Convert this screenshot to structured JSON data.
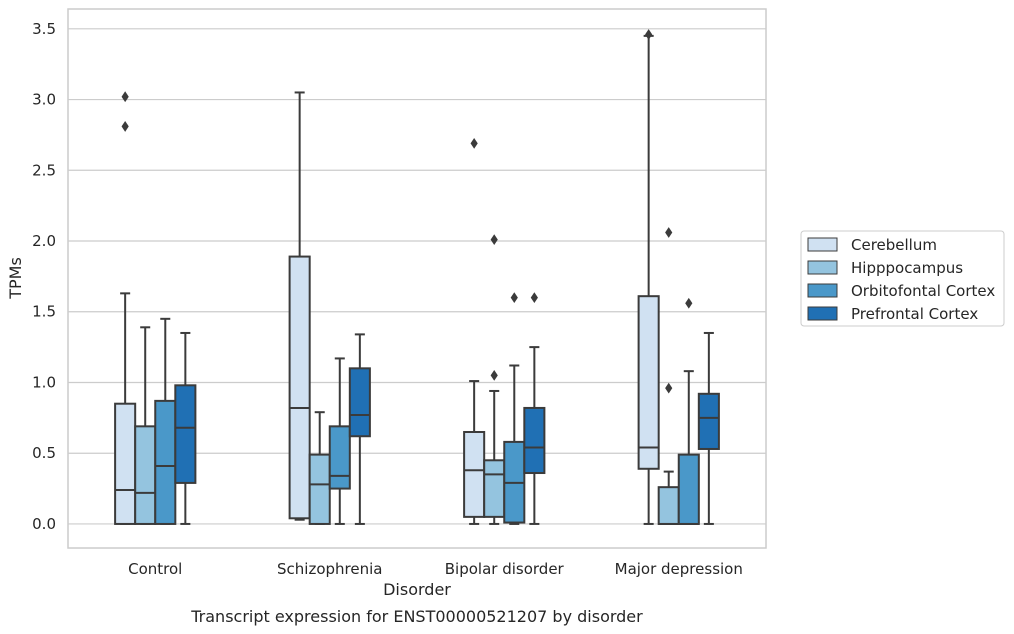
{
  "chart_data": {
    "type": "boxplot",
    "caption": "Transcript expression for ENST00000521207 by disorder",
    "xlabel": "Disorder",
    "ylabel": "TPMs",
    "ylim": [
      -0.17,
      3.64
    ],
    "yticks": [
      "0.0",
      "0.5",
      "1.0",
      "1.5",
      "2.0",
      "2.5",
      "3.0",
      "3.5"
    ],
    "grid": "horizontal",
    "legend_position": "right",
    "categories": [
      "Control",
      "Schizophrenia",
      "Bipolar disorder",
      "Major depression"
    ],
    "series": [
      {
        "name": "Cerebellum",
        "color": "#d0e1f2",
        "boxes": [
          {
            "whislo": 0.0,
            "q1": 0.0,
            "med": 0.24,
            "q3": 0.85,
            "whishi": 1.63,
            "fliers": [
              2.81,
              3.02
            ]
          },
          {
            "whislo": 0.03,
            "q1": 0.04,
            "med": 0.82,
            "q3": 1.89,
            "whishi": 3.05,
            "fliers": []
          },
          {
            "whislo": 0.0,
            "q1": 0.05,
            "med": 0.38,
            "q3": 0.65,
            "whishi": 1.01,
            "fliers": [
              2.69
            ]
          },
          {
            "whislo": 0.0,
            "q1": 0.39,
            "med": 0.54,
            "q3": 1.61,
            "whishi": 3.45,
            "fliers": [
              3.46
            ]
          }
        ]
      },
      {
        "name": "Hipppocampus",
        "color": "#94c4df",
        "boxes": [
          {
            "whislo": 0.0,
            "q1": 0.0,
            "med": 0.22,
            "q3": 0.69,
            "whishi": 1.39,
            "fliers": []
          },
          {
            "whislo": 0.0,
            "q1": 0.0,
            "med": 0.28,
            "q3": 0.49,
            "whishi": 0.79,
            "fliers": []
          },
          {
            "whislo": 0.0,
            "q1": 0.05,
            "med": 0.35,
            "q3": 0.45,
            "whishi": 0.94,
            "fliers": [
              1.05,
              2.01
            ]
          },
          {
            "whislo": 0.0,
            "q1": 0.0,
            "med": 0.0,
            "q3": 0.26,
            "whishi": 0.37,
            "fliers": [
              0.96,
              2.06
            ]
          }
        ]
      },
      {
        "name": "Orbitofontal Cortex",
        "color": "#4a98c9",
        "boxes": [
          {
            "whislo": 0.0,
            "q1": 0.0,
            "med": 0.41,
            "q3": 0.87,
            "whishi": 1.45,
            "fliers": []
          },
          {
            "whislo": 0.0,
            "q1": 0.25,
            "med": 0.34,
            "q3": 0.69,
            "whishi": 1.17,
            "fliers": []
          },
          {
            "whislo": 0.0,
            "q1": 0.01,
            "med": 0.29,
            "q3": 0.58,
            "whishi": 1.12,
            "fliers": [
              1.6
            ]
          },
          {
            "whislo": 0.0,
            "q1": 0.0,
            "med": 0.0,
            "q3": 0.49,
            "whishi": 1.08,
            "fliers": [
              1.56
            ]
          }
        ]
      },
      {
        "name": "Prefrontal Cortex",
        "color": "#2070b4",
        "boxes": [
          {
            "whislo": 0.0,
            "q1": 0.29,
            "med": 0.68,
            "q3": 0.98,
            "whishi": 1.35,
            "fliers": []
          },
          {
            "whislo": 0.0,
            "q1": 0.62,
            "med": 0.77,
            "q3": 1.1,
            "whishi": 1.34,
            "fliers": []
          },
          {
            "whislo": 0.0,
            "q1": 0.36,
            "med": 0.54,
            "q3": 0.82,
            "whishi": 1.25,
            "fliers": [
              1.6
            ]
          },
          {
            "whislo": 0.0,
            "q1": 0.53,
            "med": 0.75,
            "q3": 0.92,
            "whishi": 1.35,
            "fliers": []
          }
        ]
      }
    ]
  }
}
